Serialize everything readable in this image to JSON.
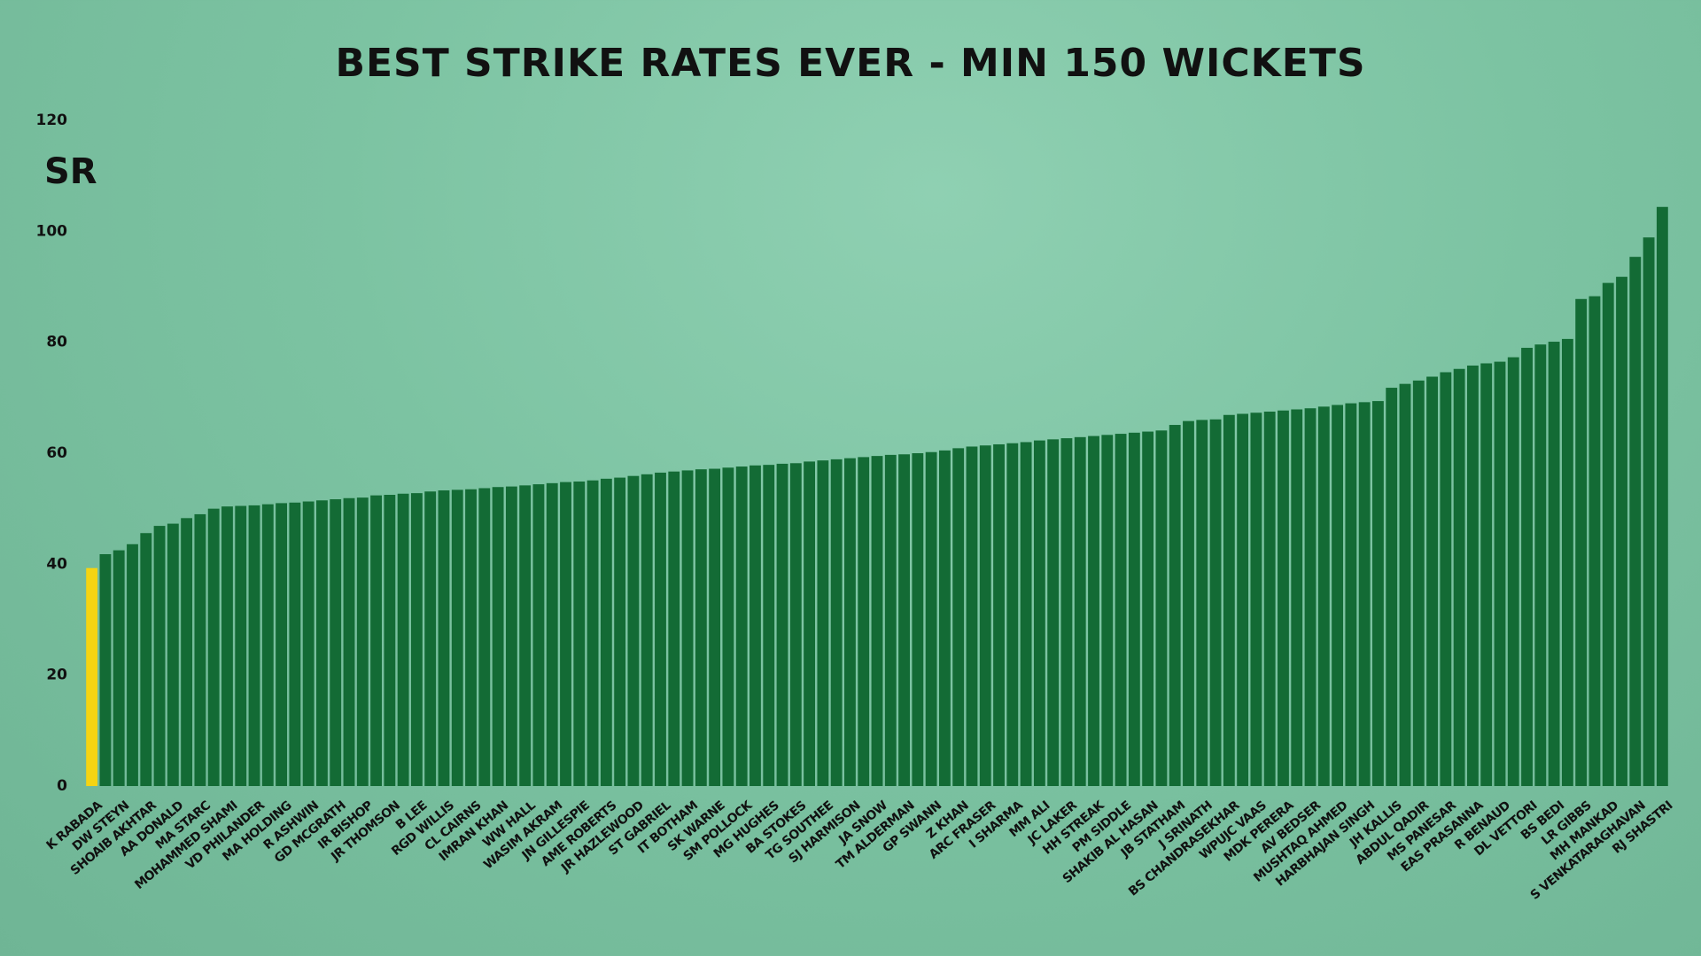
{
  "chart_data": {
    "type": "bar",
    "title": "BEST STRIKE RATES EVER - MIN 150 WICKETS",
    "y_label": "SR",
    "categories": [
      "K RABADA",
      null,
      "DW STEYN",
      null,
      "SHOAIB AKHTAR",
      null,
      "AA DONALD",
      null,
      "MA STARC",
      null,
      "MOHAMMED SHAMI",
      null,
      "VD PHILANDER",
      null,
      "MA HOLDING",
      null,
      "R ASHWIN",
      null,
      "GD MCGRATH",
      null,
      "IR BISHOP",
      null,
      "JR THOMSON",
      null,
      "B LEE",
      null,
      "RGD WILLIS",
      null,
      "CL CAIRNS",
      null,
      "IMRAN KHAN",
      null,
      "WW HALL",
      null,
      "WASIM AKRAM",
      null,
      "JN GILLESPIE",
      null,
      "AME ROBERTS",
      null,
      "JR HAZLEWOOD",
      null,
      "ST GABRIEL",
      null,
      "IT BOTHAM",
      null,
      "SK WARNE",
      null,
      "SM POLLOCK",
      null,
      "MG HUGHES",
      null,
      "BA STOKES",
      null,
      "TG SOUTHEE",
      null,
      "SJ HARMISON",
      null,
      "JA SNOW",
      null,
      "TM ALDERMAN",
      null,
      "GP SWANN",
      null,
      "Z KHAN",
      null,
      "ARC FRASER",
      null,
      "I SHARMA",
      null,
      "MM ALI",
      null,
      "JC LAKER",
      null,
      "HH STREAK",
      null,
      "PM SIDDLE",
      null,
      "SHAKIB AL HASAN",
      null,
      "JB STATHAM",
      null,
      "J SRINATH",
      null,
      "BS CHANDRASEKHAR",
      null,
      "WPUJC VAAS",
      null,
      "MDK PERERA",
      null,
      "AV BEDSER",
      null,
      "MUSHTAQ AHMED",
      null,
      "HARBHAJAN SINGH",
      null,
      "JH KALLIS",
      null,
      "ABDUL QADIR",
      null,
      "MS PANESAR",
      null,
      "EAS PRASANNA",
      null,
      "R BENAUD",
      null,
      "DL VETTORI",
      null,
      "BS BEDI",
      null,
      "LR GIBBS",
      null,
      "MH MANKAD",
      null,
      "S VENKATARAGHAVAN",
      null,
      "RJ SHASTRI"
    ],
    "values": [
      39.3,
      41.8,
      42.5,
      43.6,
      45.6,
      46.9,
      47.3,
      48.3,
      49.0,
      50.0,
      50.4,
      50.5,
      50.6,
      50.8,
      51.0,
      51.1,
      51.3,
      51.5,
      51.7,
      51.9,
      52.0,
      52.4,
      52.5,
      52.7,
      52.8,
      53.1,
      53.3,
      53.4,
      53.5,
      53.7,
      53.9,
      54.0,
      54.2,
      54.4,
      54.6,
      54.8,
      54.9,
      55.1,
      55.4,
      55.6,
      55.9,
      56.2,
      56.5,
      56.7,
      56.9,
      57.1,
      57.2,
      57.4,
      57.6,
      57.8,
      57.9,
      58.1,
      58.2,
      58.5,
      58.7,
      58.9,
      59.1,
      59.3,
      59.5,
      59.7,
      59.8,
      60.0,
      60.2,
      60.5,
      60.9,
      61.2,
      61.4,
      61.6,
      61.8,
      62.0,
      62.3,
      62.5,
      62.7,
      62.9,
      63.1,
      63.3,
      63.5,
      63.7,
      63.9,
      64.1,
      65.1,
      65.8,
      66.0,
      66.1,
      66.9,
      67.1,
      67.3,
      67.5,
      67.7,
      67.9,
      68.1,
      68.4,
      68.7,
      69.0,
      69.2,
      69.4,
      71.8,
      72.5,
      73.1,
      73.8,
      74.6,
      75.2,
      75.8,
      76.2,
      76.5,
      77.3,
      79.0,
      79.6,
      80.1,
      80.6,
      87.8,
      88.3,
      90.7,
      91.8,
      95.4,
      98.9,
      104.4
    ],
    "colors": [
      "#f5d412",
      "#136b35",
      "#136b35",
      "#136b35",
      "#136b35",
      "#136b35",
      "#136b35",
      "#136b35",
      "#136b35",
      "#136b35",
      "#136b35",
      "#136b35",
      "#136b35",
      "#136b35",
      "#136b35",
      "#136b35",
      "#136b35",
      "#136b35",
      "#136b35",
      "#136b35",
      "#136b35",
      "#136b35",
      "#136b35",
      "#136b35",
      "#136b35",
      "#136b35",
      "#136b35",
      "#136b35",
      "#136b35",
      "#136b35",
      "#136b35",
      "#136b35",
      "#136b35",
      "#136b35",
      "#136b35",
      "#136b35",
      "#136b35",
      "#136b35",
      "#136b35",
      "#136b35",
      "#136b35",
      "#136b35",
      "#136b35",
      "#136b35",
      "#136b35",
      "#136b35",
      "#136b35",
      "#136b35",
      "#136b35",
      "#136b35",
      "#136b35",
      "#136b35",
      "#136b35",
      "#136b35",
      "#136b35",
      "#136b35",
      "#136b35",
      "#136b35",
      "#136b35",
      "#136b35",
      "#136b35",
      "#136b35",
      "#136b35",
      "#136b35",
      "#136b35",
      "#136b35",
      "#136b35",
      "#136b35",
      "#136b35",
      "#136b35",
      "#136b35",
      "#136b35",
      "#136b35",
      "#136b35",
      "#136b35",
      "#136b35",
      "#136b35",
      "#136b35",
      "#136b35",
      "#136b35",
      "#136b35",
      "#136b35",
      "#136b35",
      "#136b35",
      "#136b35",
      "#136b35",
      "#136b35",
      "#136b35",
      "#136b35",
      "#136b35",
      "#136b35",
      "#136b35",
      "#136b35",
      "#136b35",
      "#136b35",
      "#136b35",
      "#136b35",
      "#136b35",
      "#136b35",
      "#136b35",
      "#136b35",
      "#136b35",
      "#136b35",
      "#136b35",
      "#136b35",
      "#136b35",
      "#136b35",
      "#136b35",
      "#136b35",
      "#136b35",
      "#136b35",
      "#136b35",
      "#136b35",
      "#136b35",
      "#136b35",
      "#136b35",
      "#136b35"
    ],
    "ylim": [
      0,
      120
    ],
    "yticks": [
      0,
      20,
      40,
      60,
      80,
      100,
      120
    ],
    "grid": false
  }
}
